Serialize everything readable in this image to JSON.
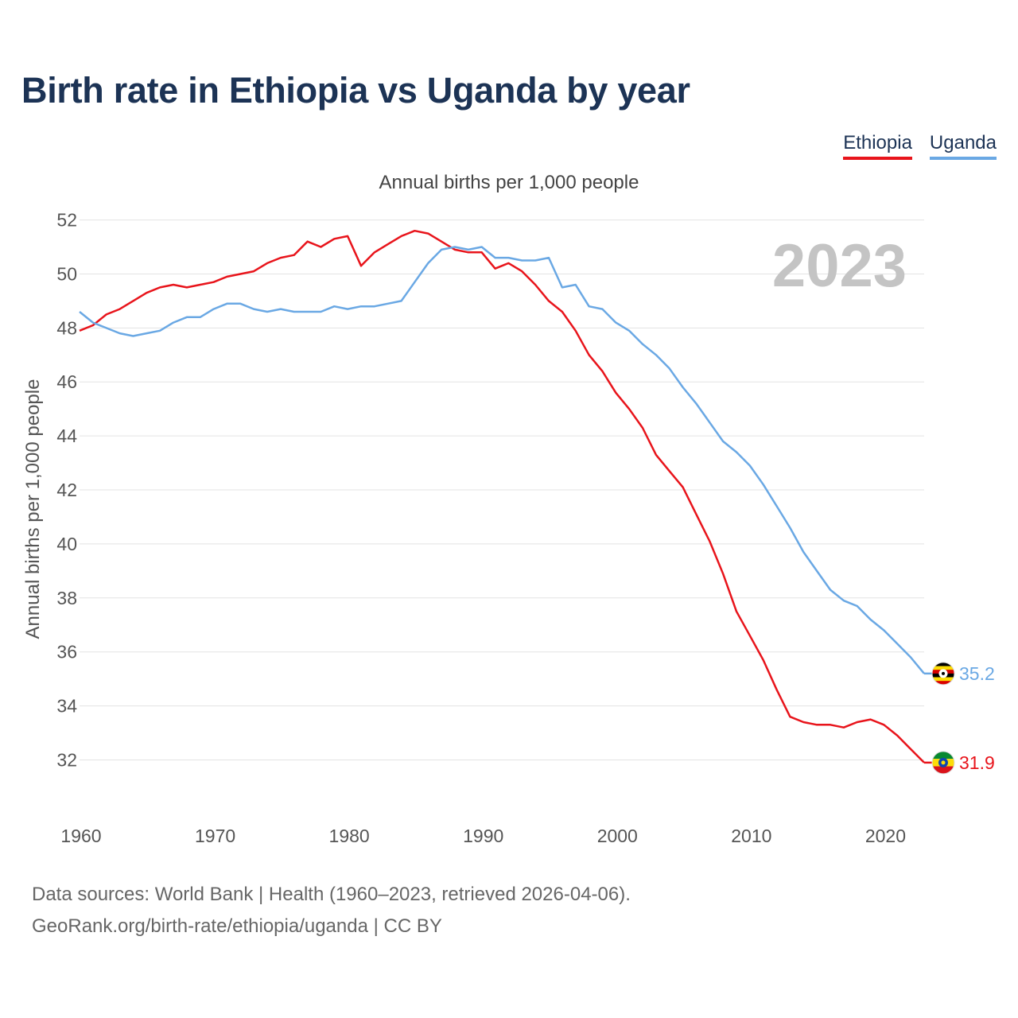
{
  "title": "Birth rate in Ethiopia vs Uganda by year",
  "legend": {
    "ethiopia": "Ethiopia",
    "uganda": "Uganda"
  },
  "subtitle": "Annual births per 1,000 people",
  "source": {
    "line1": "Data sources: World Bank | Health (1960–2023, retrieved 2026-04-06).",
    "line2": "GeoRank.org/birth-rate/ethiopia/uganda | CC BY"
  },
  "colors": {
    "ethiopia": "#e8141b",
    "uganda": "#6aa8e4",
    "grid": "#e3e3e3",
    "year_watermark": "#c4c4c4"
  },
  "chart_data": {
    "type": "line",
    "title": "Birth rate in Ethiopia vs Uganda by year",
    "xlabel": "",
    "ylabel": "Annual births per 1,000 people",
    "year_label": "2023",
    "xlim": [
      1960,
      2023
    ],
    "ylim": [
      30.6,
      52.4
    ],
    "x_ticks": [
      1960,
      1970,
      1980,
      1990,
      2000,
      2010,
      2020
    ],
    "y_ticks": [
      32,
      34,
      36,
      38,
      40,
      42,
      44,
      46,
      48,
      50,
      52
    ],
    "grid": true,
    "legend_position": "top-right",
    "x": [
      1960,
      1961,
      1962,
      1963,
      1964,
      1965,
      1966,
      1967,
      1968,
      1969,
      1970,
      1971,
      1972,
      1973,
      1974,
      1975,
      1976,
      1977,
      1978,
      1979,
      1980,
      1981,
      1982,
      1983,
      1984,
      1985,
      1986,
      1987,
      1988,
      1989,
      1990,
      1991,
      1992,
      1993,
      1994,
      1995,
      1996,
      1997,
      1998,
      1999,
      2000,
      2001,
      2002,
      2003,
      2004,
      2005,
      2006,
      2007,
      2008,
      2009,
      2010,
      2011,
      2012,
      2013,
      2014,
      2015,
      2016,
      2017,
      2018,
      2019,
      2020,
      2021,
      2022,
      2023
    ],
    "series": [
      {
        "name": "Ethiopia",
        "color": "#e8141b",
        "end_label": "31.9",
        "values": [
          47.9,
          48.1,
          48.5,
          48.7,
          49.0,
          49.3,
          49.5,
          49.6,
          49.5,
          49.6,
          49.7,
          49.9,
          50.0,
          50.1,
          50.4,
          50.6,
          50.7,
          51.2,
          51.0,
          51.3,
          51.4,
          50.3,
          50.8,
          51.1,
          51.4,
          51.6,
          51.5,
          51.2,
          50.9,
          50.8,
          50.8,
          50.2,
          50.4,
          50.1,
          49.6,
          49.0,
          48.6,
          47.9,
          47.0,
          46.4,
          45.6,
          45.0,
          44.3,
          43.3,
          42.7,
          42.1,
          41.1,
          40.1,
          38.9,
          37.5,
          36.6,
          35.7,
          34.6,
          33.6,
          33.4,
          33.3,
          33.3,
          33.2,
          33.4,
          33.5,
          33.3,
          32.9,
          32.4,
          31.9
        ]
      },
      {
        "name": "Uganda",
        "color": "#6aa8e4",
        "end_label": "35.2",
        "values": [
          48.6,
          48.2,
          48.0,
          47.8,
          47.7,
          47.8,
          47.9,
          48.2,
          48.4,
          48.4,
          48.7,
          48.9,
          48.9,
          48.7,
          48.6,
          48.7,
          48.6,
          48.6,
          48.6,
          48.8,
          48.7,
          48.8,
          48.8,
          48.9,
          49.0,
          49.7,
          50.4,
          50.9,
          51.0,
          50.9,
          51.0,
          50.6,
          50.6,
          50.5,
          50.5,
          50.6,
          49.5,
          49.6,
          48.8,
          48.7,
          48.2,
          47.9,
          47.4,
          47.0,
          46.5,
          45.8,
          45.2,
          44.5,
          43.8,
          43.4,
          42.9,
          42.2,
          41.4,
          40.6,
          39.7,
          39.0,
          38.3,
          37.9,
          37.7,
          37.2,
          36.8,
          36.3,
          35.8,
          35.2
        ]
      }
    ]
  }
}
